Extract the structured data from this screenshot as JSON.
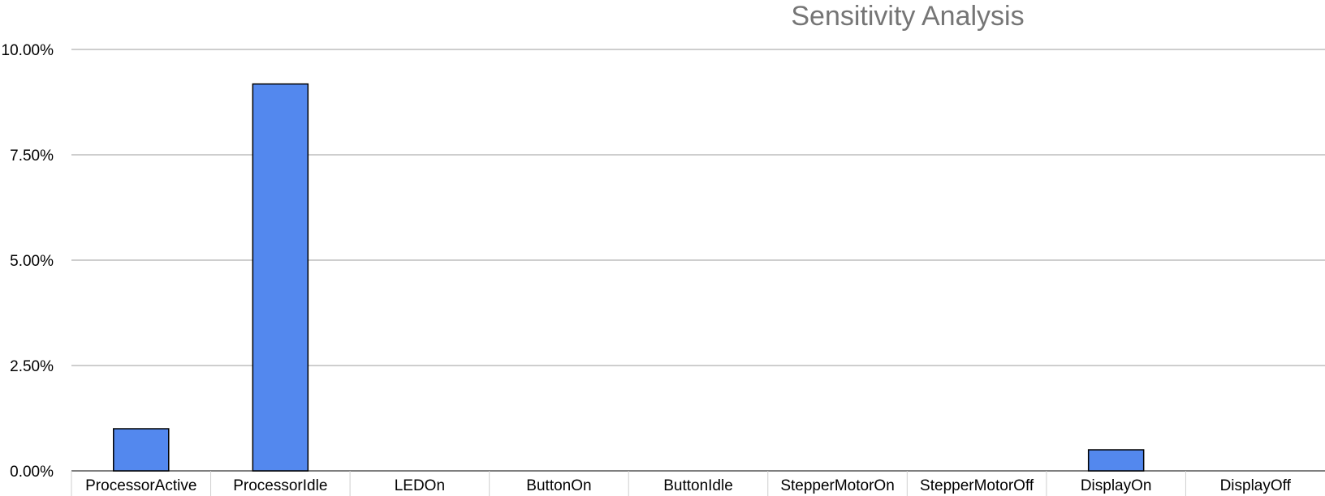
{
  "chart_data": {
    "type": "bar",
    "title": "Sensitivity Analysis",
    "xlabel": "",
    "ylabel": "",
    "categories": [
      "ProcessorActive",
      "ProcessorIdle",
      "LEDOn",
      "ButtonOn",
      "ButtonIdle",
      "StepperMotorOn",
      "StepperMotorOff",
      "DisplayOn",
      "DisplayOff"
    ],
    "values": [
      1.0,
      9.18,
      0,
      0,
      0,
      0,
      0,
      0.5,
      0
    ],
    "ylim": [
      0,
      10
    ],
    "yticks": [
      0,
      2.5,
      5,
      7.5,
      10
    ],
    "ytick_labels": [
      "0.00%",
      "2.50%",
      "5.00%",
      "7.50%",
      "10.00%"
    ],
    "grid": true,
    "legend": "none",
    "colors": {
      "bar": "#5388ee",
      "bar_stroke": "#000000",
      "grid": "#b0b0b0",
      "title": "#757575"
    }
  }
}
